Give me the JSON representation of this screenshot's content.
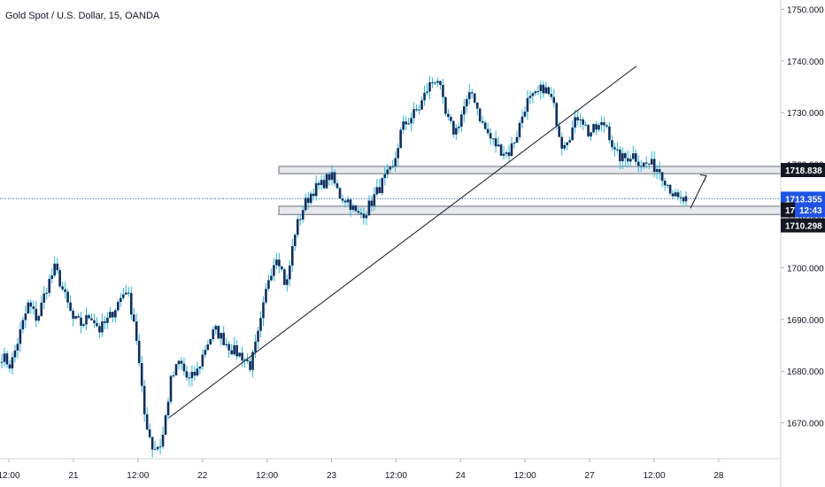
{
  "header": {
    "title": "Gold Spot / U.S. Dollar, 15, OANDA"
  },
  "colors": {
    "candle": "#0f2e5e",
    "wick": "#29b6d6",
    "price_line": "#1e53e5",
    "dark_tag": "#131722",
    "zone_fill": "#e8e9ec",
    "zone_border": "#6b6f7a",
    "trendline": "#131722"
  },
  "chart_data": {
    "type": "line",
    "title": "Gold Spot / U.S. Dollar, 15, OANDA",
    "xlabel": "",
    "ylabel": "",
    "ylim": [
      1661,
      1757
    ],
    "x_tick_labels": [
      "12:00",
      "21",
      "12:00",
      "22",
      "12:00",
      "23",
      "12:00",
      "24",
      "12:00",
      "27",
      "12:00",
      "28"
    ],
    "y_tick_labels": [
      "1670.000",
      "1680.000",
      "1690.000",
      "1700.000",
      "1710.000",
      "1720.000",
      "1730.000",
      "1740.000",
      "1750.000"
    ],
    "y_ticks": [
      1670,
      1680,
      1690,
      1700,
      1710,
      1720,
      1730,
      1740,
      1750
    ],
    "grid": false,
    "price_tags": {
      "resistance": "1718.838",
      "current": "1713.355",
      "current_partial": "17",
      "countdown": "12:43",
      "support": "1710.298"
    },
    "series": [
      {
        "values": [
          1683,
          1681,
          1687,
          1693,
          1690,
          1696,
          1700,
          1695,
          1690,
          1689,
          1691,
          1688,
          1690,
          1693,
          1696,
          1689,
          1672,
          1665,
          1666,
          1678,
          1682,
          1678,
          1680,
          1685,
          1688,
          1686,
          1684,
          1683,
          1681,
          1688,
          1698,
          1703,
          1696,
          1707,
          1712,
          1715,
          1716,
          1718,
          1714,
          1713,
          1710,
          1711,
          1714,
          1717,
          1719,
          1727,
          1729,
          1731,
          1735,
          1737,
          1729,
          1726,
          1731,
          1734,
          1728,
          1725,
          1723,
          1722,
          1726,
          1732,
          1733,
          1735,
          1732,
          1724,
          1726,
          1730,
          1726,
          1727,
          1728,
          1722,
          1721,
          1722,
          1720,
          1720,
          1719,
          1716,
          1713,
          1713
        ]
      }
    ],
    "zones": [
      {
        "low": 1718.2,
        "high": 1719.6
      },
      {
        "low": 1710.3,
        "high": 1711.9
      }
    ],
    "current_price": 1713.355,
    "trendline": {
      "from_value": 1671,
      "to_value": 1739
    },
    "arrow": {
      "from_value": 1711.5,
      "to_value": 1717.8
    }
  }
}
